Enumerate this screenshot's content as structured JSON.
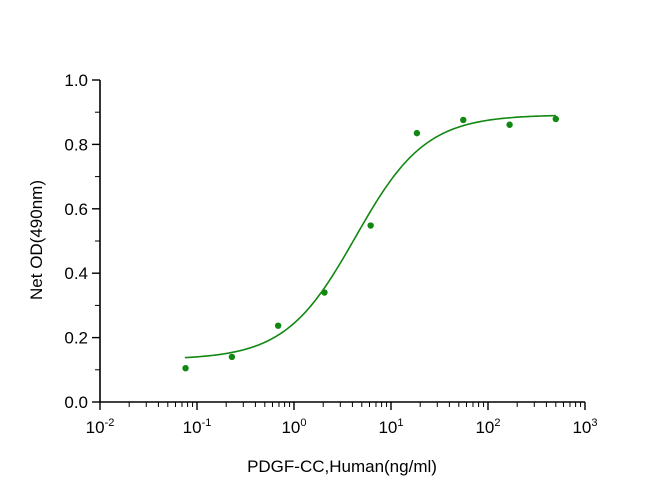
{
  "chart_data": {
    "type": "scatter",
    "xlabel": "PDGF-CC,Human(ng/ml)",
    "ylabel": "Net OD(490nm)",
    "x_scale": "log",
    "xlim": [
      0.01,
      1000
    ],
    "ylim": [
      0,
      1.0
    ],
    "x_ticks": [
      {
        "base": "10",
        "exp": "-2",
        "value": 0.01
      },
      {
        "base": "10",
        "exp": "-1",
        "value": 0.1
      },
      {
        "base": "10",
        "exp": "0",
        "value": 1
      },
      {
        "base": "10",
        "exp": "1",
        "value": 10
      },
      {
        "base": "10",
        "exp": "2",
        "value": 100
      },
      {
        "base": "10",
        "exp": "3",
        "value": 1000
      }
    ],
    "y_ticks": [
      "0.0",
      "0.2",
      "0.4",
      "0.6",
      "0.8",
      "1.0"
    ],
    "grid": false,
    "legend": "none",
    "color": "#118811",
    "series": [
      {
        "x": [
          0.0762,
          0.229,
          0.686,
          2.06,
          6.17,
          18.5,
          55.6,
          167,
          500
        ],
        "y": [
          0.105,
          0.14,
          0.237,
          0.34,
          0.548,
          0.835,
          0.876,
          0.861,
          0.879
        ]
      }
    ],
    "fit": {
      "model": "4PL",
      "bottom": 0.132,
      "top": 0.892,
      "ec50": 4.3,
      "hill": 1.2,
      "x_range": [
        0.075,
        500
      ]
    }
  }
}
